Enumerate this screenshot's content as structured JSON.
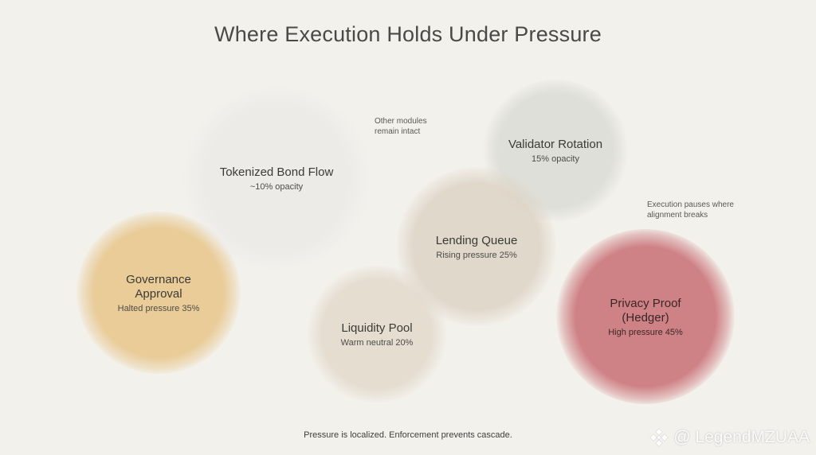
{
  "title": "Where Execution Holds Under Pressure",
  "bubbles": {
    "bond": {
      "name": "Tokenized Bond Flow",
      "sub": "~10% opacity",
      "opacity_pct": 10
    },
    "validator": {
      "name": "Validator Rotation",
      "sub": "15% opacity",
      "opacity_pct": 15
    },
    "lending": {
      "name": "Lending Queue",
      "sub": "Rising pressure 25%",
      "pressure_pct": 25,
      "color": "#ded4c6"
    },
    "liquidity": {
      "name": "Liquidity Pool",
      "sub": "Warm neutral 20%",
      "pressure_pct": 20,
      "color": "#e4dccf"
    },
    "governance": {
      "name": "Governance Approval",
      "sub": "Halted pressure 35%",
      "pressure_pct": 35,
      "color": "#e9cc98"
    },
    "privacy": {
      "name": "Privacy Proof (Hedger)",
      "sub": "High pressure 45%",
      "pressure_pct": 45,
      "color": "#cf8286"
    }
  },
  "notes": {
    "intact": "Other modules remain intact",
    "pauses": "Execution pauses where alignment breaks"
  },
  "footer": "Pressure is localized. Enforcement prevents cascade.",
  "watermark": "@ LegendMZUAA"
}
